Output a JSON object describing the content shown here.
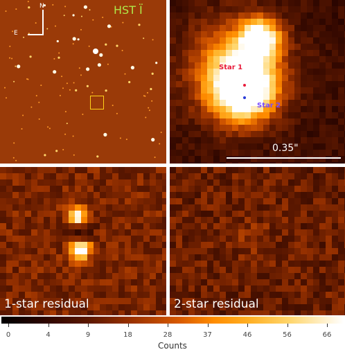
{
  "panels": {
    "field": {
      "filter_label": "HST Ï",
      "compass_n": "N",
      "compass_e": "E"
    },
    "zoom": {
      "star1_label": "Star 1",
      "star2_label": "Star 2",
      "scale_label": "0.35\""
    },
    "residual_one": {
      "label": "1-star residual"
    },
    "residual_two": {
      "label": "2-star residual"
    }
  },
  "colorbar": {
    "title": "Counts",
    "ticks": [
      "0",
      "4",
      "9",
      "18",
      "28",
      "37",
      "46",
      "56",
      "66"
    ]
  },
  "colors": {
    "star1": "#e81c3c",
    "star2": "#7a4cff",
    "filter_label": "#aee84a",
    "zoom_box": "#ffd21a"
  }
}
